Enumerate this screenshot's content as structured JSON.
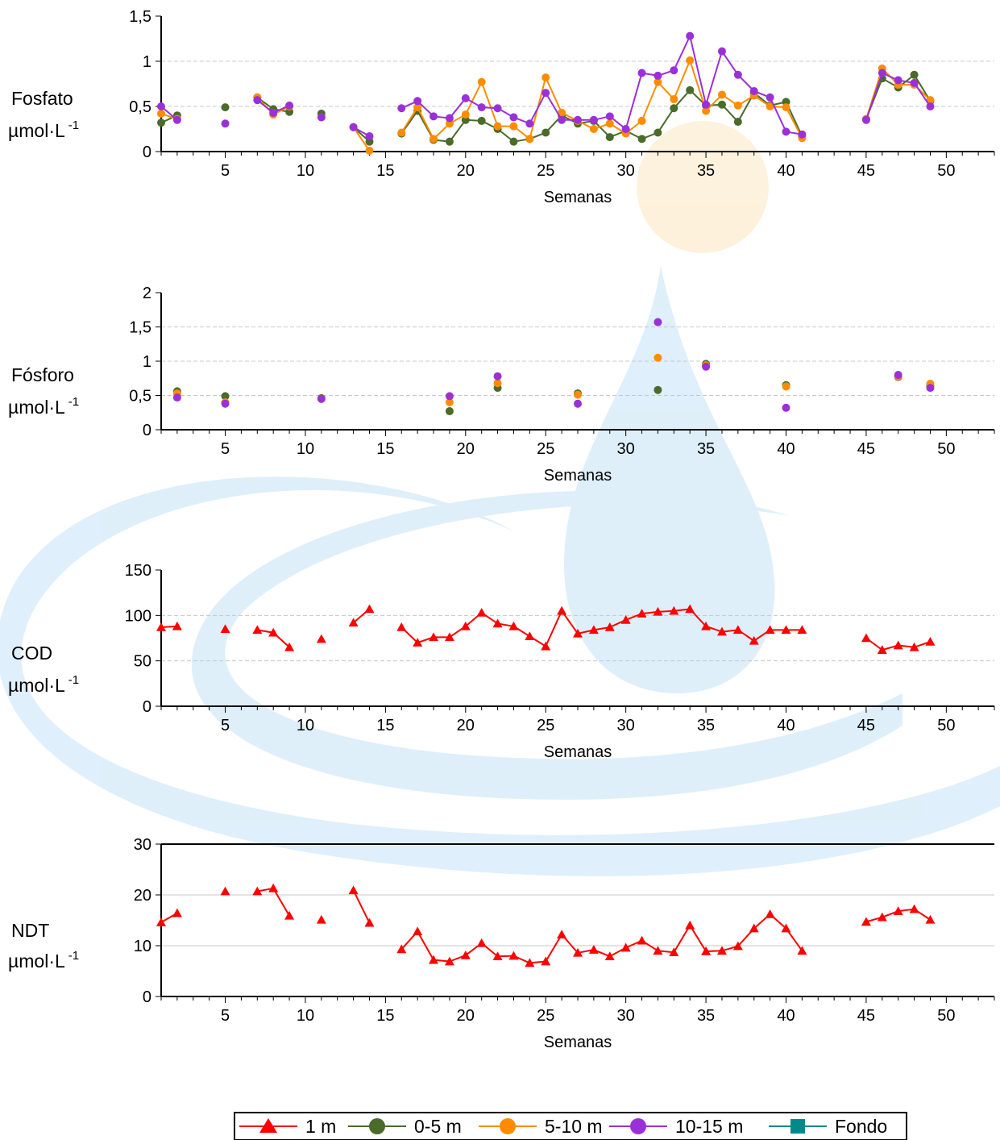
{
  "legend": {
    "items": [
      {
        "label": "1 m",
        "color": "#ff0000",
        "marker": "triangle"
      },
      {
        "label": "0-5 m",
        "color": "#4a6b2a",
        "marker": "circle"
      },
      {
        "label": "5-10 m",
        "color": "#ff8c00",
        "marker": "circle"
      },
      {
        "label": "10-15 m",
        "color": "#9b30d9",
        "marker": "circle"
      },
      {
        "label": "Fondo",
        "color": "#008b8b",
        "marker": "square"
      }
    ]
  },
  "chart_data": [
    {
      "type": "line",
      "ylabel_line1": "Fosfato",
      "ylabel_line2": "µmol·L",
      "ylabel_sup": "-1",
      "xlabel": "Semanas",
      "xlim": [
        1,
        53
      ],
      "ylim": [
        0,
        1.5
      ],
      "yticks": [
        0,
        0.5,
        1,
        1.5
      ],
      "ytick_labels": [
        "0",
        "0,5",
        "1",
        "1,5"
      ],
      "xticks": [
        5,
        10,
        15,
        20,
        25,
        30,
        35,
        40,
        45,
        50
      ],
      "xtick_labels": [
        "5",
        "10",
        "15",
        "20",
        "25",
        "30",
        "35",
        "40",
        "45",
        "50"
      ],
      "grid": true,
      "series": [
        {
          "name": "0-5 m",
          "color": "#4a6b2a",
          "marker": "circle",
          "points": [
            [
              1,
              0.32
            ],
            [
              2,
              0.4
            ],
            [
              5,
              0.49
            ],
            [
              7,
              0.6
            ],
            [
              8,
              0.47
            ],
            [
              9,
              0.44
            ],
            [
              11,
              0.42
            ],
            [
              13,
              0.27
            ],
            [
              14,
              0.11
            ],
            [
              16,
              0.2
            ],
            [
              17,
              0.45
            ],
            [
              18,
              0.13
            ],
            [
              19,
              0.11
            ],
            [
              20,
              0.35
            ],
            [
              21,
              0.34
            ],
            [
              22,
              0.25
            ],
            [
              23,
              0.11
            ],
            [
              24,
              0.14
            ],
            [
              25,
              0.21
            ],
            [
              26,
              0.4
            ],
            [
              27,
              0.31
            ],
            [
              28,
              0.34
            ],
            [
              29,
              0.16
            ],
            [
              30,
              0.23
            ],
            [
              31,
              0.14
            ],
            [
              32,
              0.21
            ],
            [
              33,
              0.48
            ],
            [
              34,
              0.68
            ],
            [
              35,
              0.51
            ],
            [
              36,
              0.52
            ],
            [
              37,
              0.33
            ],
            [
              38,
              0.65
            ],
            [
              39,
              0.51
            ],
            [
              40,
              0.55
            ],
            [
              41,
              0.17
            ],
            [
              45,
              0.36
            ],
            [
              46,
              0.81
            ],
            [
              47,
              0.71
            ],
            [
              48,
              0.85
            ],
            [
              49,
              0.56
            ]
          ]
        },
        {
          "name": "5-10 m",
          "color": "#ff8c00",
          "marker": "circle",
          "points": [
            [
              1,
              0.42
            ],
            [
              2,
              0.36
            ],
            [
              7,
              0.6
            ],
            [
              8,
              0.41
            ],
            [
              9,
              0.5
            ],
            [
              11,
              0.38
            ],
            [
              13,
              0.27
            ],
            [
              14,
              0.01
            ],
            [
              16,
              0.21
            ],
            [
              17,
              0.49
            ],
            [
              18,
              0.14
            ],
            [
              19,
              0.31
            ],
            [
              20,
              0.41
            ],
            [
              21,
              0.77
            ],
            [
              22,
              0.28
            ],
            [
              23,
              0.28
            ],
            [
              24,
              0.14
            ],
            [
              25,
              0.82
            ],
            [
              26,
              0.43
            ],
            [
              27,
              0.34
            ],
            [
              28,
              0.25
            ],
            [
              29,
              0.31
            ],
            [
              30,
              0.2
            ],
            [
              31,
              0.34
            ],
            [
              32,
              0.77
            ],
            [
              33,
              0.58
            ],
            [
              34,
              1.01
            ],
            [
              35,
              0.45
            ],
            [
              36,
              0.63
            ],
            [
              37,
              0.51
            ],
            [
              38,
              0.62
            ],
            [
              39,
              0.5
            ],
            [
              40,
              0.49
            ],
            [
              41,
              0.15
            ],
            [
              45,
              0.36
            ],
            [
              46,
              0.92
            ],
            [
              47,
              0.74
            ],
            [
              48,
              0.74
            ],
            [
              49,
              0.57
            ]
          ]
        },
        {
          "name": "10-15 m",
          "color": "#9b30d9",
          "marker": "circle",
          "points": [
            [
              1,
              0.5
            ],
            [
              2,
              0.35
            ],
            [
              5,
              0.31
            ],
            [
              7,
              0.57
            ],
            [
              8,
              0.43
            ],
            [
              9,
              0.51
            ],
            [
              11,
              0.38
            ],
            [
              13,
              0.27
            ],
            [
              14,
              0.17
            ],
            [
              16,
              0.48
            ],
            [
              17,
              0.56
            ],
            [
              18,
              0.39
            ],
            [
              19,
              0.37
            ],
            [
              20,
              0.59
            ],
            [
              21,
              0.49
            ],
            [
              22,
              0.48
            ],
            [
              23,
              0.38
            ],
            [
              24,
              0.31
            ],
            [
              25,
              0.65
            ],
            [
              26,
              0.35
            ],
            [
              27,
              0.35
            ],
            [
              28,
              0.35
            ],
            [
              29,
              0.39
            ],
            [
              30,
              0.25
            ],
            [
              31,
              0.87
            ],
            [
              32,
              0.84
            ],
            [
              33,
              0.9
            ],
            [
              34,
              1.28
            ],
            [
              35,
              0.52
            ],
            [
              36,
              1.11
            ],
            [
              37,
              0.85
            ],
            [
              38,
              0.67
            ],
            [
              39,
              0.6
            ],
            [
              40,
              0.22
            ],
            [
              41,
              0.19
            ],
            [
              45,
              0.35
            ],
            [
              46,
              0.87
            ],
            [
              47,
              0.79
            ],
            [
              48,
              0.76
            ],
            [
              49,
              0.5
            ]
          ]
        }
      ]
    },
    {
      "type": "scatter",
      "ylabel_line1": "Fósforo",
      "ylabel_line2": "µmol·L",
      "ylabel_sup": "-1",
      "xlabel": "Semanas",
      "xlim": [
        1,
        53
      ],
      "ylim": [
        0,
        2
      ],
      "yticks": [
        0,
        0.5,
        1,
        1.5,
        2
      ],
      "ytick_labels": [
        "0",
        "0,5",
        "1",
        "1,5",
        "2"
      ],
      "xticks": [
        5,
        10,
        15,
        20,
        25,
        30,
        35,
        40,
        45,
        50
      ],
      "xtick_labels": [
        "5",
        "10",
        "15",
        "20",
        "25",
        "30",
        "35",
        "40",
        "45",
        "50"
      ],
      "grid": true,
      "series": [
        {
          "name": "0-5 m",
          "color": "#4a6b2a",
          "marker": "circle",
          "points": [
            [
              2,
              0.56
            ],
            [
              5,
              0.49
            ],
            [
              11,
              0.46
            ],
            [
              19,
              0.27
            ],
            [
              22,
              0.61
            ],
            [
              27,
              0.53
            ],
            [
              32,
              0.58
            ],
            [
              35,
              0.96
            ],
            [
              40,
              0.65
            ],
            [
              47,
              0.77
            ],
            [
              49,
              0.64
            ]
          ]
        },
        {
          "name": "5-10 m",
          "color": "#ff8c00",
          "marker": "circle",
          "points": [
            [
              2,
              0.53
            ],
            [
              5,
              0.4
            ],
            [
              11,
              0.45
            ],
            [
              19,
              0.4
            ],
            [
              22,
              0.68
            ],
            [
              27,
              0.51
            ],
            [
              32,
              1.05
            ],
            [
              35,
              0.94
            ],
            [
              40,
              0.63
            ],
            [
              47,
              0.78
            ],
            [
              49,
              0.67
            ]
          ]
        },
        {
          "name": "10-15 m",
          "color": "#9b30d9",
          "marker": "circle",
          "points": [
            [
              2,
              0.47
            ],
            [
              5,
              0.38
            ],
            [
              11,
              0.45
            ],
            [
              19,
              0.49
            ],
            [
              22,
              0.78
            ],
            [
              27,
              0.38
            ],
            [
              32,
              1.57
            ],
            [
              35,
              0.92
            ],
            [
              40,
              0.32
            ],
            [
              47,
              0.8
            ],
            [
              49,
              0.61
            ]
          ]
        }
      ]
    },
    {
      "type": "line",
      "ylabel_line1": "COD",
      "ylabel_line2": "µmol·L",
      "ylabel_sup": "-1",
      "xlabel": "Semanas",
      "xlim": [
        1,
        53
      ],
      "ylim": [
        0,
        150
      ],
      "yticks": [
        0,
        50,
        100,
        150
      ],
      "ytick_labels": [
        "0",
        "50",
        "100",
        "150"
      ],
      "xticks": [
        5,
        10,
        15,
        20,
        25,
        30,
        35,
        40,
        45,
        50
      ],
      "xtick_labels": [
        "5",
        "10",
        "15",
        "20",
        "25",
        "30",
        "35",
        "40",
        "45",
        "50"
      ],
      "grid": true,
      "series": [
        {
          "name": "1 m",
          "color": "#ff0000",
          "marker": "triangle",
          "points": [
            [
              1,
              87
            ],
            [
              2,
              88
            ],
            [
              5,
              85
            ],
            [
              7,
              84
            ],
            [
              8,
              81
            ],
            [
              9,
              65
            ],
            [
              11,
              74
            ],
            [
              13,
              92
            ],
            [
              14,
              107
            ],
            [
              16,
              87
            ],
            [
              17,
              70
            ],
            [
              18,
              76
            ],
            [
              19,
              76
            ],
            [
              20,
              88
            ],
            [
              21,
              103
            ],
            [
              22,
              91
            ],
            [
              23,
              88
            ],
            [
              24,
              77
            ],
            [
              25,
              66
            ],
            [
              26,
              105
            ],
            [
              27,
              80
            ],
            [
              28,
              84
            ],
            [
              29,
              87
            ],
            [
              30,
              95
            ],
            [
              31,
              102
            ],
            [
              32,
              104
            ],
            [
              33,
              105
            ],
            [
              34,
              107
            ],
            [
              35,
              88
            ],
            [
              36,
              82
            ],
            [
              37,
              84
            ],
            [
              38,
              72
            ],
            [
              39,
              84
            ],
            [
              40,
              84
            ],
            [
              41,
              84
            ],
            [
              45,
              75
            ],
            [
              46,
              62
            ],
            [
              47,
              67
            ],
            [
              48,
              65
            ],
            [
              49,
              71
            ]
          ]
        }
      ]
    },
    {
      "type": "line",
      "ylabel_line1": "NDT",
      "ylabel_line2": "µmol·L",
      "ylabel_sup": "-1",
      "xlabel": "Semanas",
      "xlim": [
        1,
        53
      ],
      "ylim": [
        0,
        30
      ],
      "yticks": [
        0,
        10,
        20,
        30
      ],
      "ytick_labels": [
        "0",
        "10",
        "20",
        "30"
      ],
      "xticks": [
        5,
        10,
        15,
        20,
        25,
        30,
        35,
        40,
        45,
        50
      ],
      "xtick_labels": [
        "5",
        "10",
        "15",
        "20",
        "25",
        "30",
        "35",
        "40",
        "45",
        "50"
      ],
      "grid": true,
      "series": [
        {
          "name": "1 m",
          "color": "#ff0000",
          "marker": "triangle",
          "points": [
            [
              1,
              14.6
            ],
            [
              2,
              16.4
            ],
            [
              5,
              20.7
            ],
            [
              7,
              20.7
            ],
            [
              8,
              21.3
            ],
            [
              9,
              15.9
            ],
            [
              11,
              15.1
            ],
            [
              13,
              20.9
            ],
            [
              14,
              14.5
            ],
            [
              16,
              9.3
            ],
            [
              17,
              12.8
            ],
            [
              18,
              7.2
            ],
            [
              19,
              6.9
            ],
            [
              20,
              8.1
            ],
            [
              21,
              10.5
            ],
            [
              22,
              7.9
            ],
            [
              23,
              8.0
            ],
            [
              24,
              6.6
            ],
            [
              25,
              6.9
            ],
            [
              26,
              12.2
            ],
            [
              27,
              8.6
            ],
            [
              28,
              9.2
            ],
            [
              29,
              7.9
            ],
            [
              30,
              9.6
            ],
            [
              31,
              11.0
            ],
            [
              32,
              9.0
            ],
            [
              33,
              8.7
            ],
            [
              34,
              14.0
            ],
            [
              35,
              8.9
            ],
            [
              36,
              9.0
            ],
            [
              37,
              9.9
            ],
            [
              38,
              13.4
            ],
            [
              39,
              16.2
            ],
            [
              40,
              13.4
            ],
            [
              41,
              9.0
            ],
            [
              45,
              14.7
            ],
            [
              46,
              15.6
            ],
            [
              47,
              16.8
            ],
            [
              48,
              17.2
            ],
            [
              49,
              15.1
            ]
          ]
        }
      ]
    }
  ]
}
